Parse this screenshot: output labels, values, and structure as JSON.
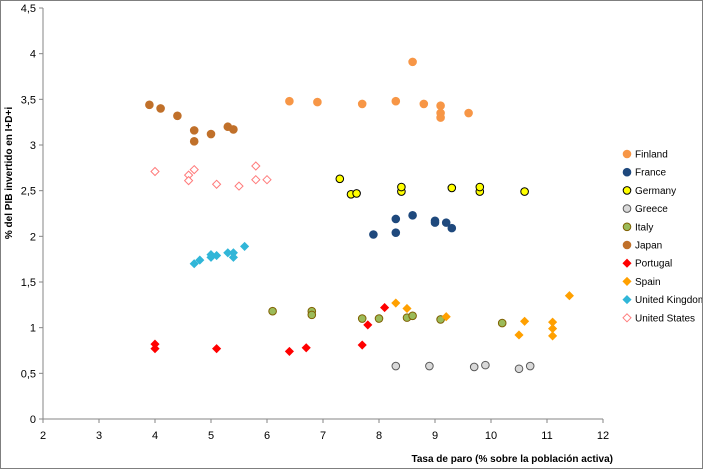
{
  "chart_data": {
    "type": "scatter",
    "title": "",
    "xlabel": "Tasa de paro (% sobre la población activa)",
    "ylabel": "% del PIB invertido en I+D+i",
    "xlim": [
      2,
      12
    ],
    "ylim": [
      0,
      4.5
    ],
    "xticks": [
      2,
      3,
      4,
      5,
      6,
      7,
      8,
      9,
      10,
      11,
      12
    ],
    "xtick_labels": [
      "2",
      "3",
      "4",
      "5",
      "6",
      "7",
      "8",
      "9",
      "10",
      "11",
      "12"
    ],
    "yticks": [
      0,
      0.5,
      1,
      1.5,
      2,
      2.5,
      3,
      3.5,
      4,
      4.5
    ],
    "ytick_labels": [
      "0",
      "0,5",
      "1",
      "1,5",
      "2",
      "2,5",
      "3",
      "3,5",
      "4",
      "4,5"
    ],
    "grid": false,
    "legend_position": "right",
    "series": [
      {
        "name": "Finland",
        "marker": "circle",
        "color": "#f79646",
        "stroke": "#f79646",
        "fill": "#f79646",
        "points": [
          [
            6.4,
            3.48
          ],
          [
            6.9,
            3.47
          ],
          [
            7.7,
            3.45
          ],
          [
            8.3,
            3.48
          ],
          [
            8.6,
            3.91
          ],
          [
            8.8,
            3.45
          ],
          [
            9.1,
            3.43
          ],
          [
            9.1,
            3.35
          ],
          [
            9.1,
            3.3
          ],
          [
            9.6,
            3.35
          ]
        ]
      },
      {
        "name": "France",
        "marker": "circle",
        "color": "#1f497d",
        "stroke": "#1f497d",
        "fill": "#1f497d",
        "points": [
          [
            7.9,
            2.02
          ],
          [
            8.3,
            2.04
          ],
          [
            8.3,
            2.19
          ],
          [
            8.6,
            2.23
          ],
          [
            9.0,
            2.17
          ],
          [
            9.0,
            2.15
          ],
          [
            9.2,
            2.15
          ],
          [
            9.3,
            2.09
          ]
        ]
      },
      {
        "name": "Germany",
        "marker": "circle",
        "color": "#ffff00",
        "stroke": "#000000",
        "fill": "#ffff00",
        "points": [
          [
            7.3,
            2.63
          ],
          [
            7.5,
            2.46
          ],
          [
            7.6,
            2.47
          ],
          [
            8.4,
            2.49
          ],
          [
            8.4,
            2.54
          ],
          [
            9.3,
            2.53
          ],
          [
            9.8,
            2.49
          ],
          [
            9.8,
            2.54
          ],
          [
            10.6,
            2.49
          ]
        ]
      },
      {
        "name": "Greece",
        "marker": "circle",
        "color": "#d9d9d9",
        "stroke": "#595959",
        "fill": "#d9d9d9",
        "points": [
          [
            8.3,
            0.58
          ],
          [
            8.9,
            0.58
          ],
          [
            9.7,
            0.57
          ],
          [
            9.9,
            0.59
          ],
          [
            10.5,
            0.55
          ],
          [
            10.7,
            0.58
          ]
        ]
      },
      {
        "name": "Italy",
        "marker": "circle",
        "color": "#9bbb59",
        "stroke": "#7f6000",
        "fill": "#9bbb59",
        "points": [
          [
            6.1,
            1.18
          ],
          [
            6.8,
            1.18
          ],
          [
            6.8,
            1.14
          ],
          [
            7.7,
            1.1
          ],
          [
            8.0,
            1.1
          ],
          [
            8.5,
            1.11
          ],
          [
            8.6,
            1.13
          ],
          [
            9.1,
            1.09
          ],
          [
            10.2,
            1.05
          ]
        ]
      },
      {
        "name": "Japan",
        "marker": "circle",
        "color": "#c0702a",
        "stroke": "#c0702a",
        "fill": "#c0702a",
        "points": [
          [
            3.9,
            3.44
          ],
          [
            4.1,
            3.4
          ],
          [
            4.4,
            3.32
          ],
          [
            4.7,
            3.16
          ],
          [
            4.7,
            3.04
          ],
          [
            5.0,
            3.12
          ],
          [
            5.3,
            3.2
          ],
          [
            5.4,
            3.17
          ]
        ]
      },
      {
        "name": "Portugal",
        "marker": "diamond",
        "color": "#ff0000",
        "stroke": "#ff0000",
        "fill": "#ff0000",
        "points": [
          [
            4.0,
            0.82
          ],
          [
            4.0,
            0.77
          ],
          [
            5.1,
            0.77
          ],
          [
            6.4,
            0.74
          ],
          [
            6.7,
            0.78
          ],
          [
            7.7,
            0.81
          ],
          [
            7.8,
            1.03
          ],
          [
            8.1,
            1.22
          ]
        ]
      },
      {
        "name": "Spain",
        "marker": "diamond",
        "color": "#ffa000",
        "stroke": "#ffa000",
        "fill": "#ffa000",
        "points": [
          [
            8.3,
            1.27
          ],
          [
            8.5,
            1.21
          ],
          [
            9.2,
            1.12
          ],
          [
            10.5,
            0.92
          ],
          [
            10.6,
            1.07
          ],
          [
            11.1,
            1.06
          ],
          [
            11.1,
            0.99
          ],
          [
            11.1,
            0.91
          ],
          [
            11.4,
            1.35
          ]
        ]
      },
      {
        "name": "United Kingdom",
        "marker": "diamond",
        "color": "#31b6d8",
        "stroke": "#31b6d8",
        "fill": "#31b6d8",
        "points": [
          [
            4.7,
            1.7
          ],
          [
            4.8,
            1.74
          ],
          [
            5.0,
            1.77
          ],
          [
            5.0,
            1.8
          ],
          [
            5.1,
            1.79
          ],
          [
            5.3,
            1.82
          ],
          [
            5.4,
            1.82
          ],
          [
            5.4,
            1.77
          ],
          [
            5.6,
            1.89
          ]
        ]
      },
      {
        "name": "United States",
        "marker": "diamond-open",
        "color": "#ff7b7b",
        "stroke": "#ff7b7b",
        "fill": "none",
        "points": [
          [
            4.0,
            2.71
          ],
          [
            4.6,
            2.67
          ],
          [
            4.6,
            2.61
          ],
          [
            4.7,
            2.73
          ],
          [
            5.1,
            2.57
          ],
          [
            5.5,
            2.55
          ],
          [
            5.8,
            2.77
          ],
          [
            5.8,
            2.62
          ],
          [
            6.0,
            2.62
          ]
        ]
      }
    ]
  }
}
